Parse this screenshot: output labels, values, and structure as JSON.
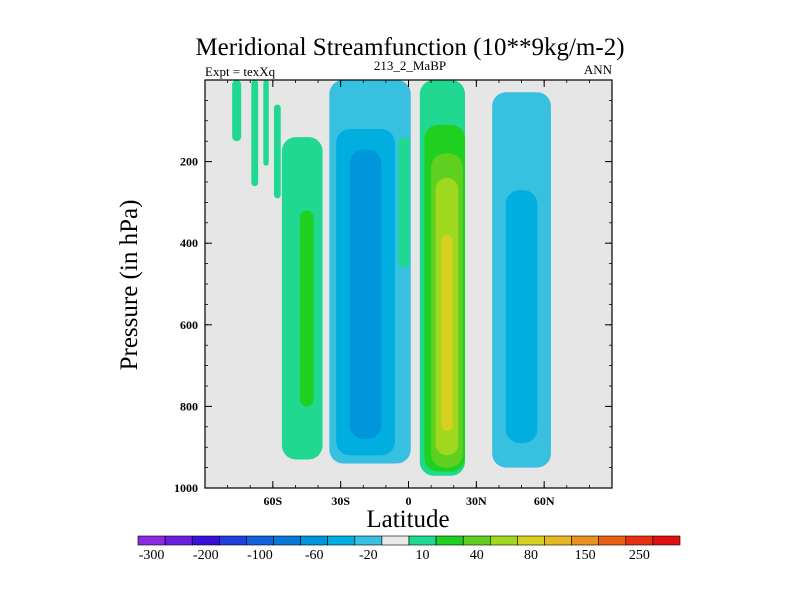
{
  "chart_data": {
    "type": "contour",
    "title": "Meridional Streamfunction (10**9kg/m-2)",
    "left_label": "Expt = texXq",
    "center_label": "213_2_MaBP",
    "right_label": "ANN",
    "xlabel": "Latitude",
    "ylabel": "Pressure (in hPa)",
    "xlim": [
      -90,
      90
    ],
    "ylim": [
      1000,
      0
    ],
    "x_ticks": [
      {
        "value": -60,
        "label": "60S"
      },
      {
        "value": -30,
        "label": "30S"
      },
      {
        "value": 0,
        "label": "0"
      },
      {
        "value": 30,
        "label": "30N"
      },
      {
        "value": 60,
        "label": "60N"
      }
    ],
    "y_ticks": [
      {
        "value": 200,
        "label": "200"
      },
      {
        "value": 400,
        "label": "400"
      },
      {
        "value": 600,
        "label": "600"
      },
      {
        "value": 800,
        "label": "800"
      },
      {
        "value": 1000,
        "label": "1000"
      }
    ],
    "levels": [
      -300,
      -250,
      -200,
      -150,
      -100,
      -80,
      -60,
      -40,
      -20,
      -10,
      10,
      20,
      40,
      60,
      80,
      100,
      150,
      200,
      250,
      300
    ],
    "colorbar_labels": [
      {
        "level": -300,
        "label": "-300"
      },
      {
        "level": -200,
        "label": "-200"
      },
      {
        "level": -100,
        "label": "-100"
      },
      {
        "level": -60,
        "label": "-60"
      },
      {
        "level": -20,
        "label": "-20"
      },
      {
        "level": 10,
        "label": "10"
      },
      {
        "level": 40,
        "label": "40"
      },
      {
        "level": 80,
        "label": "80"
      },
      {
        "level": 150,
        "label": "150"
      },
      {
        "level": 250,
        "label": "250"
      }
    ],
    "colors": [
      "#8a2be2",
      "#6a1fe0",
      "#3a10d8",
      "#2040e0",
      "#1060e0",
      "#0878d8",
      "#0096dc",
      "#00aee0",
      "#38c0e0",
      "#e8e8e8",
      "#20d890",
      "#20d020",
      "#60d020",
      "#a0d820",
      "#d8d020",
      "#e8b820",
      "#e89020",
      "#e86010",
      "#e83010",
      "#e01010"
    ],
    "background_color": "#e6e6e6",
    "cells": [
      {
        "name": "nh-outer-cell",
        "lat_center": 50,
        "lat_halfwidth": 13,
        "p_top": 30,
        "p_bottom": 950,
        "value": -15,
        "color_index": 8
      },
      {
        "name": "nh-inner-cell",
        "lat_center": 50,
        "lat_halfwidth": 7,
        "p_top": 270,
        "p_bottom": 890,
        "value": -25,
        "color_index": 7
      },
      {
        "name": "hadley-nh-outer",
        "lat_center": 15,
        "lat_halfwidth": 10,
        "p_top": 0,
        "p_bottom": 970,
        "value": 15,
        "color_index": 10
      },
      {
        "name": "hadley-nh-green",
        "lat_center": 16,
        "lat_halfwidth": 9,
        "p_top": 110,
        "p_bottom": 960,
        "value": 25,
        "color_index": 11
      },
      {
        "name": "hadley-nh-lightgreen",
        "lat_center": 17,
        "lat_halfwidth": 7,
        "p_top": 180,
        "p_bottom": 950,
        "value": 45,
        "color_index": 12
      },
      {
        "name": "hadley-nh-yellowgreen",
        "lat_center": 17,
        "lat_halfwidth": 5,
        "p_top": 240,
        "p_bottom": 920,
        "value": 65,
        "color_index": 13
      },
      {
        "name": "hadley-nh-core",
        "lat_center": 17,
        "lat_halfwidth": 2.5,
        "p_top": 380,
        "p_bottom": 860,
        "value": 85,
        "color_index": 14
      },
      {
        "name": "hadley-sh-outer",
        "lat_center": -17,
        "lat_halfwidth": 18,
        "p_top": 0,
        "p_bottom": 940,
        "value": -15,
        "color_index": 8
      },
      {
        "name": "hadley-sh-mid",
        "lat_center": -19,
        "lat_halfwidth": 13,
        "p_top": 120,
        "p_bottom": 920,
        "value": -25,
        "color_index": 7
      },
      {
        "name": "hadley-sh-core",
        "lat_center": -19,
        "lat_halfwidth": 7,
        "p_top": 170,
        "p_bottom": 880,
        "value": -45,
        "color_index": 6
      },
      {
        "name": "sh-ferrel-outer",
        "lat_center": -47,
        "lat_halfwidth": 9,
        "p_top": 140,
        "p_bottom": 930,
        "value": 15,
        "color_index": 10
      },
      {
        "name": "sh-ferrel-core",
        "lat_center": -45,
        "lat_halfwidth": 3,
        "p_top": 320,
        "p_bottom": 800,
        "value": 25,
        "color_index": 11
      },
      {
        "name": "polar-streak-1",
        "lat_center": -76,
        "lat_halfwidth": 2,
        "p_top": 0,
        "p_bottom": 150,
        "value": 12,
        "color_index": 10
      },
      {
        "name": "polar-streak-2",
        "lat_center": -68,
        "lat_halfwidth": 1.5,
        "p_top": 0,
        "p_bottom": 260,
        "value": 12,
        "color_index": 10
      },
      {
        "name": "polar-streak-3",
        "lat_center": -63,
        "lat_halfwidth": 1.2,
        "p_top": 0,
        "p_bottom": 210,
        "value": 12,
        "color_index": 10
      },
      {
        "name": "polar-streak-4",
        "lat_center": -58,
        "lat_halfwidth": 1.5,
        "p_top": 60,
        "p_bottom": 290,
        "value": 12,
        "color_index": 10
      },
      {
        "name": "nh-tropopause-wisp",
        "lat_center": -2,
        "lat_halfwidth": 2.5,
        "p_top": 140,
        "p_bottom": 460,
        "value": 12,
        "color_index": 10
      }
    ]
  }
}
